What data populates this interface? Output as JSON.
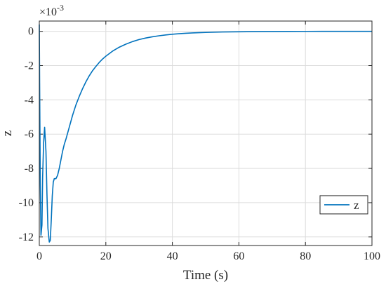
{
  "chart_data": {
    "type": "line",
    "xlabel": "Time (s)",
    "ylabel": "z",
    "y_exponent_label": "×10",
    "y_exponent_power": "-3",
    "xlim": [
      0,
      100
    ],
    "ylim": [
      -12.5,
      0.6
    ],
    "x_ticks": [
      0,
      20,
      40,
      60,
      80,
      100
    ],
    "y_ticks": [
      0,
      -2,
      -4,
      -6,
      -8,
      -10,
      -12
    ],
    "grid": true,
    "legend_placement": "lower-right",
    "series": [
      {
        "name": "z",
        "color": "#0072bd",
        "x": [
          0,
          0.1,
          0.3,
          0.5,
          0.8,
          1.0,
          1.3,
          1.6,
          2.0,
          2.3,
          2.6,
          3.0,
          3.3,
          3.6,
          3.9,
          4.2,
          4.5,
          5,
          5.5,
          6,
          6.5,
          7,
          7.5,
          8,
          9,
          10,
          11,
          12,
          13,
          14,
          15,
          16,
          17,
          18,
          19,
          20,
          22,
          24,
          26,
          28,
          30,
          32,
          34,
          36,
          38,
          40,
          42,
          44,
          46,
          48,
          50,
          55,
          60,
          65,
          70,
          75,
          80,
          85,
          90,
          95,
          100
        ],
        "y": [
          0.4,
          -3,
          -9,
          -11.9,
          -11.3,
          -8.5,
          -6.5,
          -5.6,
          -7.0,
          -9.5,
          -11.5,
          -12.3,
          -12.2,
          -11,
          -9.6,
          -8.8,
          -8.6,
          -8.6,
          -8.4,
          -8.0,
          -7.5,
          -7.0,
          -6.6,
          -6.3,
          -5.6,
          -4.9,
          -4.3,
          -3.8,
          -3.35,
          -2.95,
          -2.6,
          -2.3,
          -2.05,
          -1.82,
          -1.62,
          -1.45,
          -1.16,
          -0.93,
          -0.75,
          -0.6,
          -0.48,
          -0.39,
          -0.32,
          -0.26,
          -0.21,
          -0.17,
          -0.14,
          -0.115,
          -0.095,
          -0.08,
          -0.065,
          -0.04,
          -0.025,
          -0.016,
          -0.01,
          -0.006,
          -0.004,
          -0.0025,
          -0.0015,
          -0.001,
          -0.0005
        ]
      }
    ]
  }
}
